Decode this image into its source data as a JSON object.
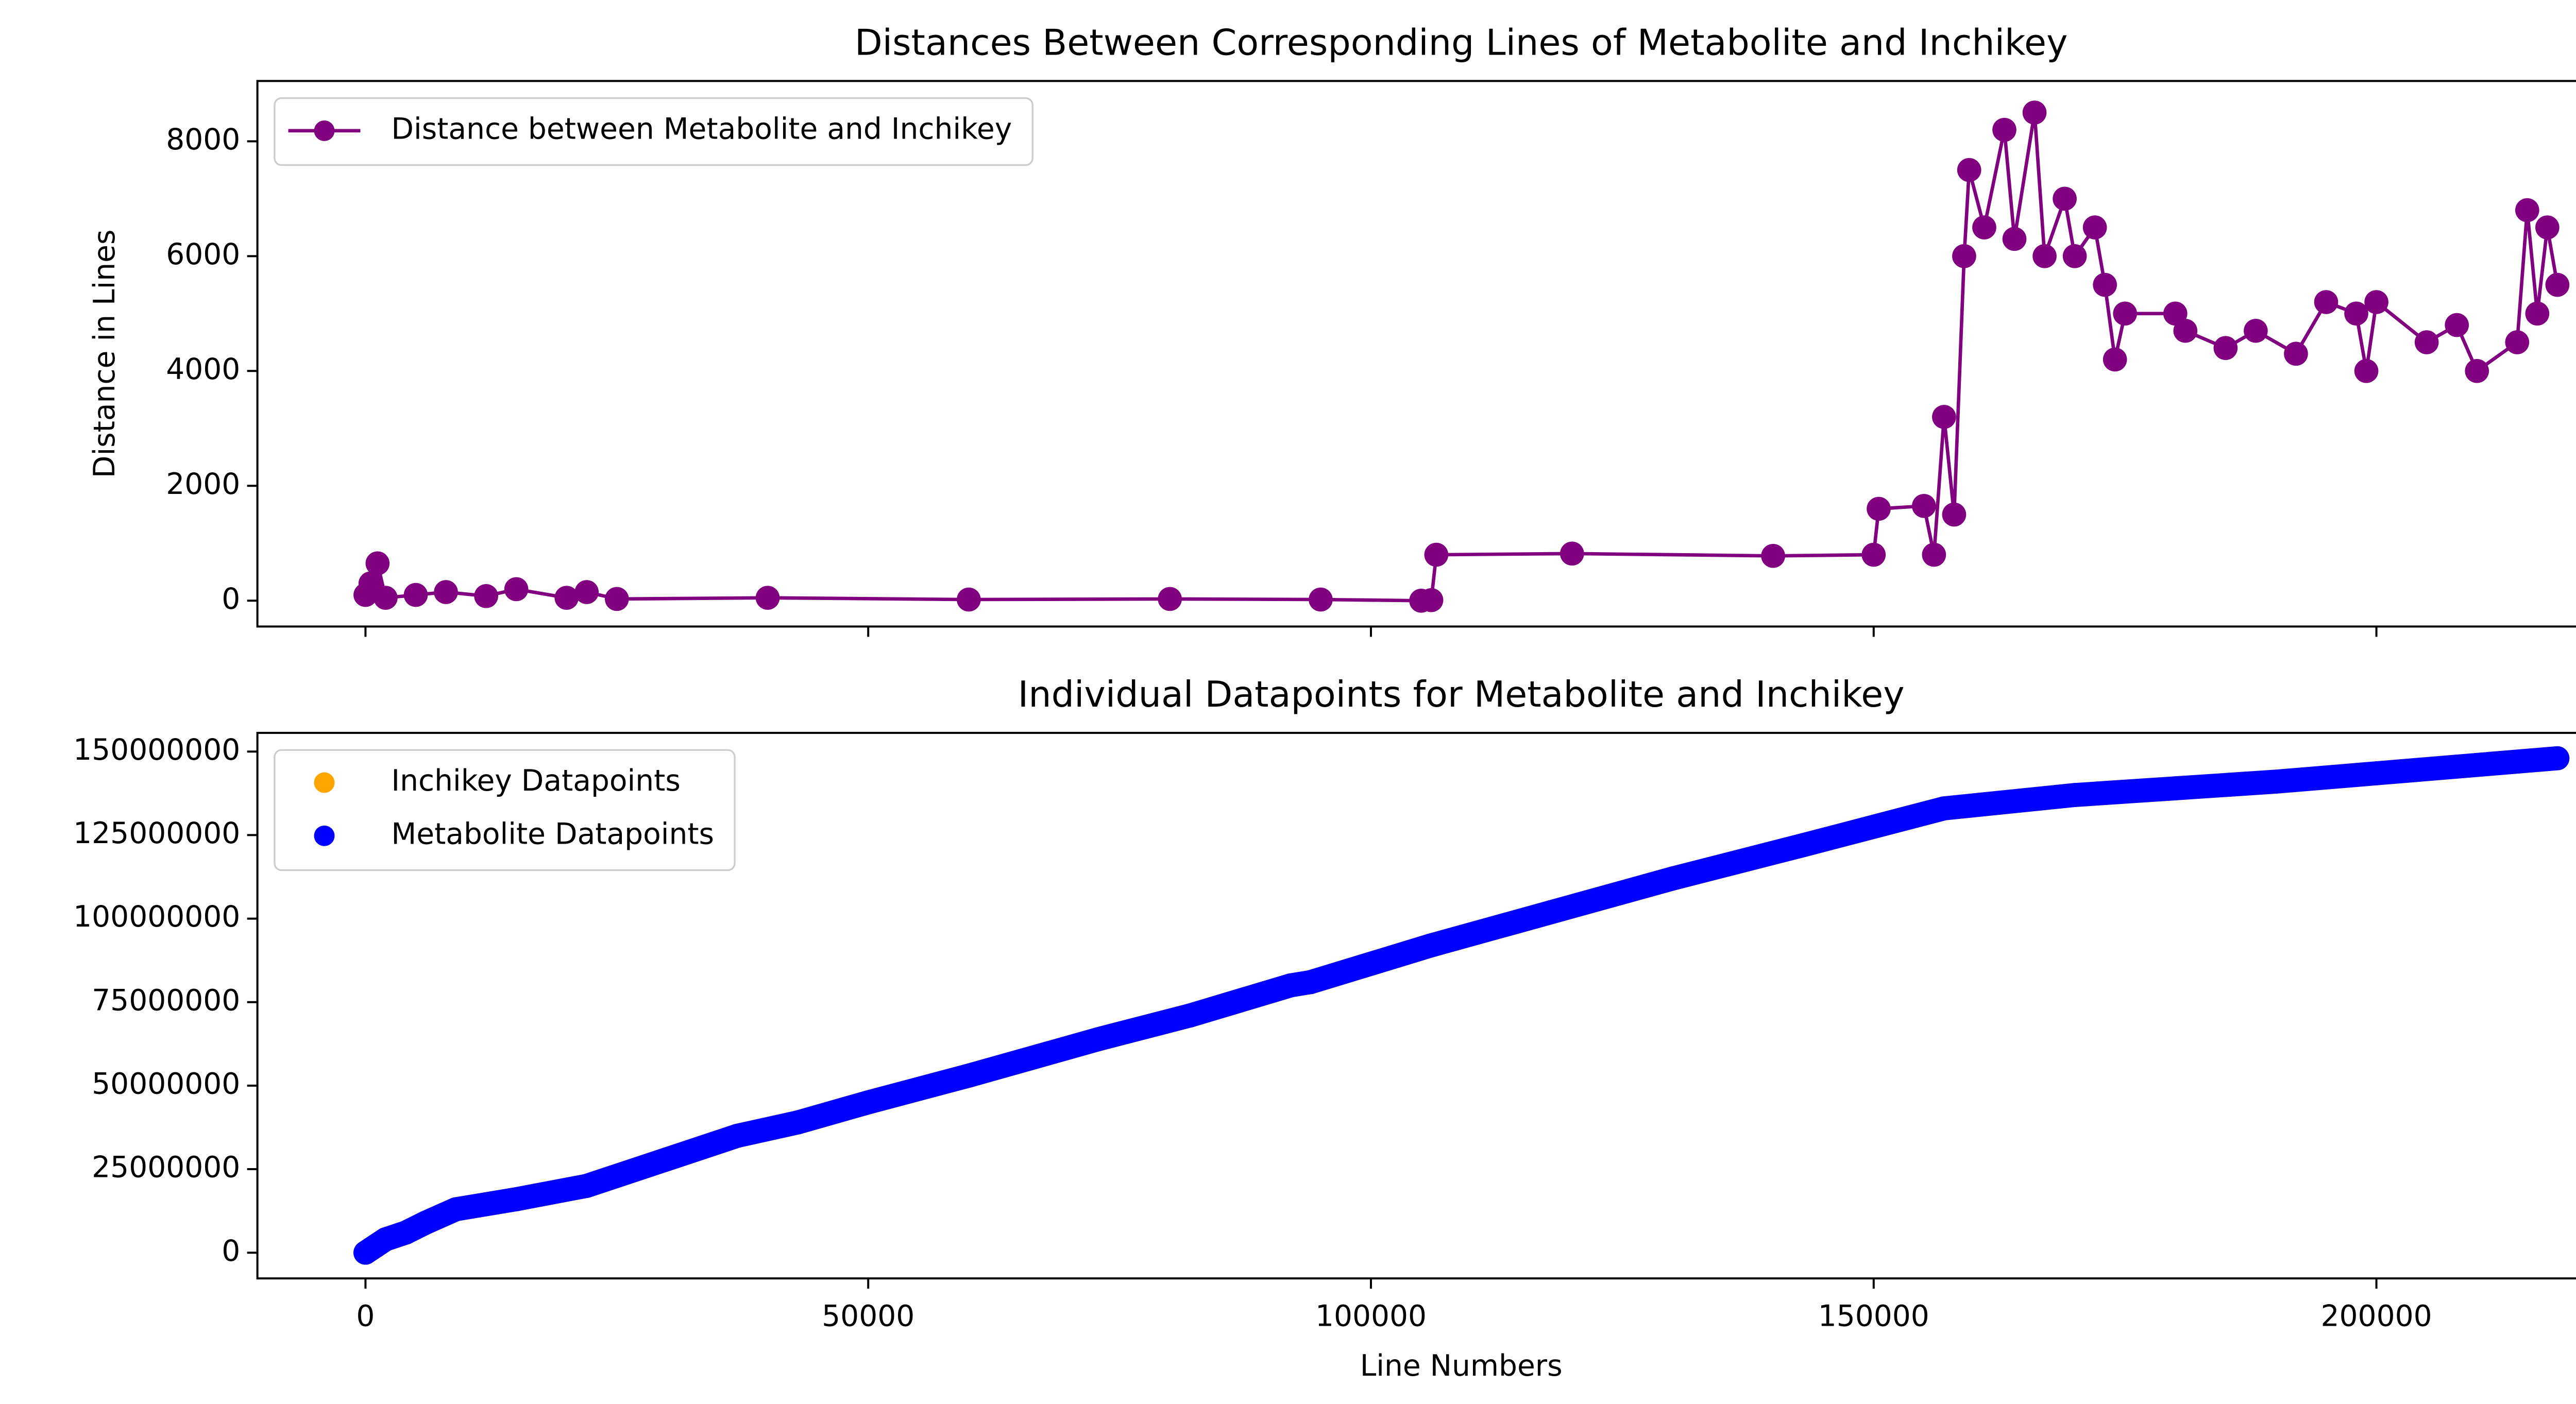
{
  "chart_data": [
    {
      "type": "line",
      "title": "Distances Between Corresponding Lines of Metabolite and Inchikey",
      "ylabel": "Distance in Lines",
      "x": [
        0,
        500,
        1200,
        2000,
        5000,
        8000,
        12000,
        15000,
        20000,
        22000,
        25000,
        40000,
        60000,
        80000,
        95000,
        105000,
        106000,
        106500,
        120000,
        140000,
        150000,
        150500,
        155000,
        156000,
        157000,
        158000,
        159000,
        159500,
        161000,
        163000,
        164000,
        166000,
        167000,
        169000,
        170000,
        172000,
        173000,
        174000,
        175000,
        180000,
        181000,
        185000,
        188000,
        192000,
        195000,
        198000,
        199000,
        200000,
        205000,
        208000,
        210000,
        214000,
        215000,
        216000,
        217000,
        218000
      ],
      "series": [
        {
          "name": "Distance between Metabolite and Inchikey",
          "color": "#800080",
          "marker": "o",
          "values": [
            100,
            300,
            650,
            50,
            100,
            150,
            80,
            200,
            50,
            150,
            30,
            50,
            20,
            30,
            20,
            0,
            10,
            800,
            820,
            780,
            800,
            1600,
            1650,
            800,
            3200,
            1500,
            6000,
            7500,
            6500,
            8200,
            6300,
            8500,
            6000,
            7000,
            6000,
            6500,
            5500,
            4200,
            5000,
            5000,
            4700,
            4400,
            4700,
            4300,
            5200,
            5000,
            4000,
            5200,
            4500,
            4800,
            4000,
            4500,
            6800,
            5000,
            6500,
            5500
          ]
        }
      ],
      "xlim": [
        -10750,
        228700
      ],
      "ylim": [
        -450,
        9050
      ],
      "yticks": [
        0,
        2000,
        4000,
        6000,
        8000
      ],
      "legend": "upper left"
    },
    {
      "type": "scatter",
      "title": "Individual Datapoints for Metabolite and Inchikey",
      "xlabel": "Line Numbers",
      "x": [
        0,
        1000,
        2000,
        4000,
        6000,
        9000,
        15000,
        22000,
        30000,
        37000,
        43000,
        50000,
        60000,
        73000,
        82000,
        92000,
        94000,
        106000,
        118000,
        130000,
        143000,
        157000,
        170000,
        180000,
        190000,
        200000,
        210000,
        218000
      ],
      "series": [
        {
          "name": "Inchikey Datapoints",
          "color": "#ffa500",
          "values": [
            0,
            2000000,
            4000000,
            6000000,
            9000000,
            13000000,
            16000000,
            20000000,
            28000000,
            35000000,
            39000000,
            45000000,
            53000000,
            64000000,
            71000000,
            80000000,
            81000000,
            92000000,
            102000000,
            112000000,
            122000000,
            133000000,
            137000000,
            139000000,
            141000000,
            143500000,
            146000000,
            148000000
          ]
        },
        {
          "name": "Metabolite Datapoints",
          "color": "#0000ff",
          "values": [
            0,
            2000000,
            4000000,
            6000000,
            9000000,
            13000000,
            16000000,
            20000000,
            28000000,
            35000000,
            39000000,
            45000000,
            53000000,
            64000000,
            71000000,
            80000000,
            81000000,
            92000000,
            102000000,
            112000000,
            122000000,
            133000000,
            137000000,
            139000000,
            141000000,
            143500000,
            146000000,
            148000000
          ]
        }
      ],
      "xlim": [
        -10750,
        228700
      ],
      "xticks": [
        0,
        50000,
        100000,
        150000,
        200000
      ],
      "ylim": [
        -7700000,
        155600000
      ],
      "yticks": [
        0,
        25000000,
        50000000,
        75000000,
        100000000,
        125000000,
        150000000
      ],
      "legend": "upper left"
    }
  ]
}
